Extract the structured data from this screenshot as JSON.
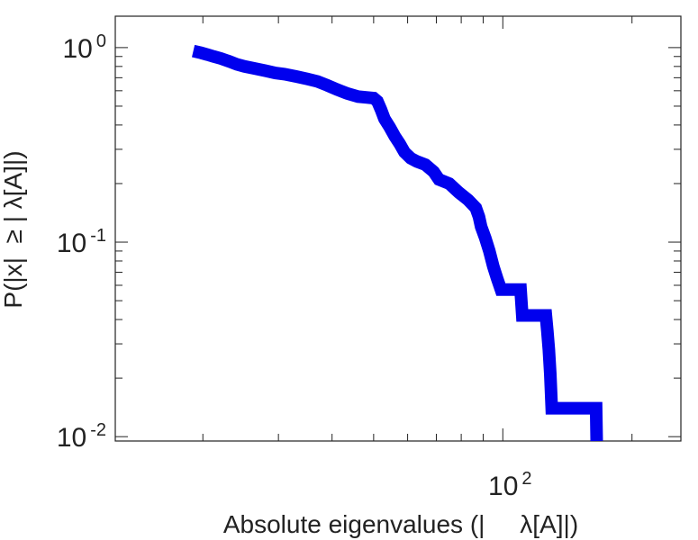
{
  "chart_data": {
    "type": "line",
    "title": "",
    "xlabel": "Absolute eigenvalues (|     λ[A]|)",
    "ylabel": "P(|x|  ≥ | λ[A]|)",
    "x_scale": "log",
    "y_scale": "log",
    "xlim": [
      12.5,
      260
    ],
    "ylim": [
      0.0095,
      1.45
    ],
    "x_ticks": [
      {
        "value": 100,
        "base": "10",
        "exp": "2"
      }
    ],
    "y_ticks": [
      {
        "value": 1,
        "base": "10",
        "exp": "0"
      },
      {
        "value": 0.1,
        "base": "10",
        "exp": "-1"
      },
      {
        "value": 0.01,
        "base": "10",
        "exp": "-2"
      }
    ],
    "grid": false,
    "line_color": "#0000ee",
    "series": [
      {
        "points": [
          [
            19.0,
            0.96
          ],
          [
            19.8,
            0.94
          ],
          [
            20.5,
            0.92
          ],
          [
            21.2,
            0.9
          ],
          [
            22.0,
            0.88
          ],
          [
            23.0,
            0.85
          ],
          [
            24.0,
            0.82
          ],
          [
            25.0,
            0.8
          ],
          [
            26.5,
            0.78
          ],
          [
            28.0,
            0.76
          ],
          [
            29.5,
            0.74
          ],
          [
            31.0,
            0.73
          ],
          [
            33.0,
            0.71
          ],
          [
            35.0,
            0.69
          ],
          [
            37.0,
            0.67
          ],
          [
            39.0,
            0.64
          ],
          [
            41.0,
            0.61
          ],
          [
            43.5,
            0.58
          ],
          [
            46.0,
            0.56
          ],
          [
            48.0,
            0.555
          ],
          [
            50.0,
            0.55
          ],
          [
            51.0,
            0.53
          ],
          [
            52.0,
            0.48
          ],
          [
            53.0,
            0.43
          ],
          [
            54.5,
            0.39
          ],
          [
            56.0,
            0.35
          ],
          [
            57.5,
            0.32
          ],
          [
            59.0,
            0.29
          ],
          [
            61.0,
            0.27
          ],
          [
            63.0,
            0.26
          ],
          [
            66.0,
            0.25
          ],
          [
            69.0,
            0.23
          ],
          [
            71.0,
            0.21
          ],
          [
            75.0,
            0.2
          ],
          [
            79.0,
            0.18
          ],
          [
            83.0,
            0.165
          ],
          [
            86.5,
            0.15
          ],
          [
            88.0,
            0.135
          ],
          [
            89.0,
            0.12
          ],
          [
            91.0,
            0.105
          ],
          [
            93.0,
            0.09
          ],
          [
            95.0,
            0.075
          ],
          [
            97.0,
            0.065
          ],
          [
            99.0,
            0.057
          ],
          [
            110.0,
            0.057
          ],
          [
            111.0,
            0.042
          ],
          [
            126.0,
            0.042
          ],
          [
            127.0,
            0.035
          ],
          [
            128.0,
            0.028
          ],
          [
            129.0,
            0.021
          ],
          [
            130.0,
            0.014
          ],
          [
            165.0,
            0.014
          ],
          [
            165.5,
            0.0095
          ]
        ]
      }
    ]
  }
}
